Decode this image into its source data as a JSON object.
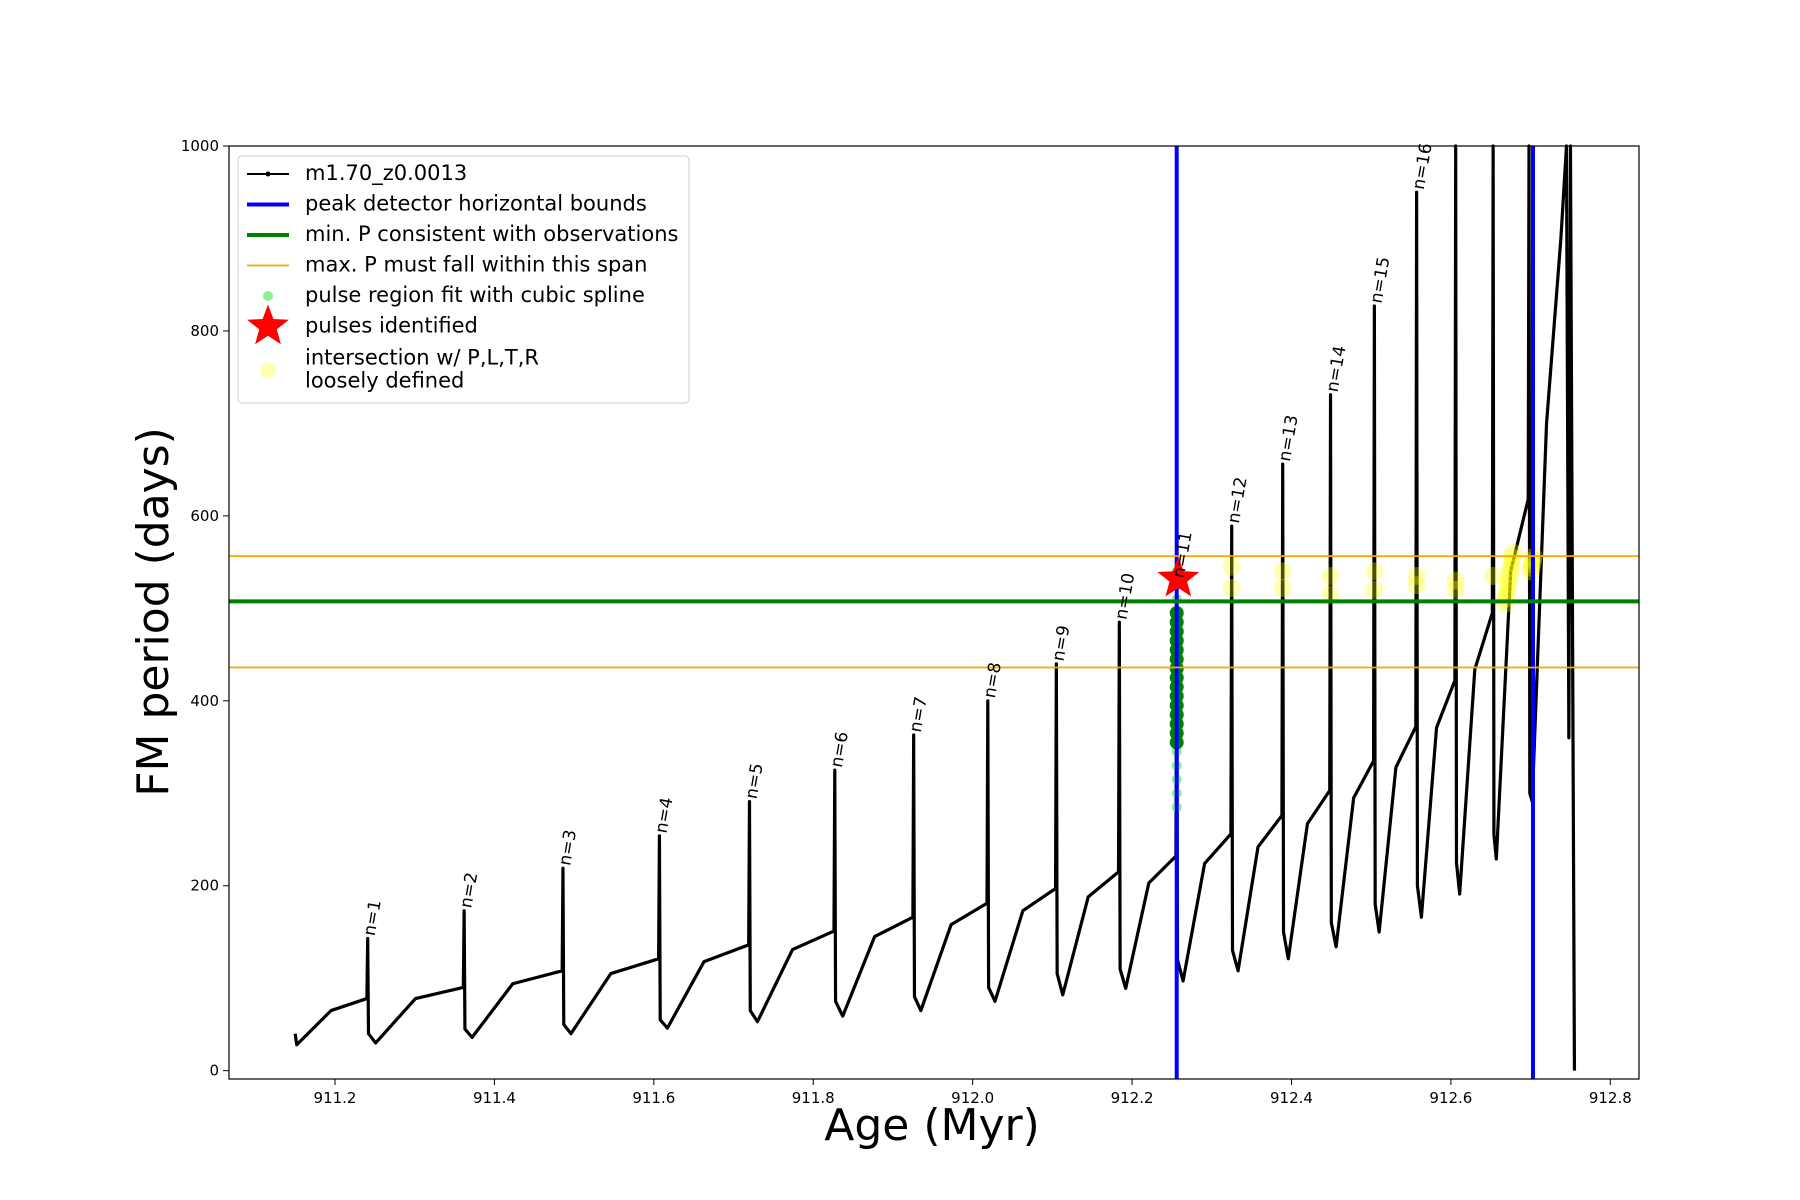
{
  "chart_data": {
    "type": "line",
    "xlabel": "Age (Myr)",
    "ylabel": "FM period (days)",
    "xlim": [
      911.067,
      912.836
    ],
    "ylim": [
      -9,
      1000
    ],
    "xticks": [
      {
        "value": 911.2,
        "label": "911.2"
      },
      {
        "value": 911.4,
        "label": "911.4"
      },
      {
        "value": 911.6,
        "label": "911.6"
      },
      {
        "value": 911.8,
        "label": "911.8"
      },
      {
        "value": 912,
        "label": "912.0"
      },
      {
        "value": 912.2,
        "label": "912.2"
      },
      {
        "value": 912.4,
        "label": "912.4"
      },
      {
        "value": 912.6,
        "label": "912.6"
      },
      {
        "value": 912.8,
        "label": "912.8"
      }
    ],
    "yticks": [
      0,
      200,
      400,
      600,
      800,
      1000
    ],
    "legend": "upper left",
    "series": [
      {
        "name": "m1.70_z0.0013",
        "kind": "line",
        "color": "#000000",
        "x": [
          911.15,
          911.152,
          911.195,
          911.24,
          911.241,
          911.242,
          911.251,
          911.301,
          911.361,
          911.362,
          911.363,
          911.372,
          911.423,
          911.485,
          911.486,
          911.487,
          911.496,
          911.546,
          911.606,
          911.607,
          911.608,
          911.617,
          911.663,
          911.719,
          911.72,
          911.721,
          911.73,
          911.774,
          911.826,
          911.827,
          911.828,
          911.837,
          911.877,
          911.925,
          911.926,
          911.927,
          911.935,
          911.973,
          912.018,
          912.019,
          912.02,
          912.028,
          912.063,
          912.104,
          912.105,
          912.106,
          912.113,
          912.145,
          912.183,
          912.184,
          912.185,
          912.192,
          912.221,
          912.255,
          912.256,
          912.257,
          912.264,
          912.291,
          912.324,
          912.325,
          912.326,
          912.333,
          912.358,
          912.388,
          912.389,
          912.39,
          912.396,
          912.42,
          912.448,
          912.449,
          912.45,
          912.456,
          912.478,
          912.503,
          912.504,
          912.505,
          912.51,
          912.531,
          912.556,
          912.557,
          912.558,
          912.563,
          912.582,
          912.605,
          912.606,
          912.607,
          912.611,
          912.63,
          912.652,
          912.653,
          912.654,
          912.657,
          912.675,
          912.697,
          912.698,
          912.699,
          912.702,
          912.72,
          912.738,
          912.745,
          912.748,
          912.75,
          912.752,
          912.755
        ],
        "values": [
          40,
          28,
          65,
          78,
          143,
          40,
          30,
          78,
          90,
          173,
          45,
          36,
          94,
          108,
          219,
          50,
          40,
          105,
          121,
          254,
          55,
          46,
          118,
          136,
          291,
          65,
          53,
          131,
          151,
          325,
          75,
          59,
          145,
          166,
          363,
          80,
          65,
          158,
          181,
          400,
          90,
          75,
          173,
          197,
          440,
          105,
          82,
          188,
          215,
          485,
          110,
          89,
          203,
          232,
          540,
          120,
          97,
          224,
          256,
          589,
          130,
          108,
          242,
          276,
          656,
          150,
          121,
          267,
          303,
          731,
          160,
          134,
          295,
          335,
          827,
          180,
          150,
          328,
          372,
          950,
          200,
          166,
          371,
          422,
          1000,
          225,
          191,
          434,
          495,
          1000,
          255,
          229,
          540,
          618,
          1000,
          300,
          291,
          700,
          900,
          1000,
          360,
          1000,
          600,
          0
        ]
      },
      {
        "name": "peak detector horizontal bounds",
        "kind": "vline",
        "color": "#0000ff",
        "values": [
          912.256,
          912.703
        ]
      },
      {
        "name": "min. P consistent with observations",
        "kind": "hline",
        "color": "#008000",
        "values": [
          507.5
        ]
      },
      {
        "name": "max. P must fall within this span",
        "kind": "hline",
        "color": "#ffa500",
        "values": [
          436,
          556.5
        ]
      },
      {
        "name": "pulse region fit with cubic spline",
        "kind": "scatter",
        "color": "#90ee90",
        "x": [
          912.256,
          912.256,
          912.256,
          912.256,
          912.256,
          912.256,
          912.256,
          912.256,
          912.256,
          912.256,
          912.256,
          912.256,
          912.256,
          912.256,
          912.256,
          912.256,
          912.256,
          912.256
        ],
        "values": [
          285,
          300,
          315,
          330,
          345,
          360,
          375,
          390,
          405,
          420,
          435,
          450,
          465,
          480,
          495,
          510,
          525,
          540
        ]
      },
      {
        "kind": "scatter",
        "color": "#008000",
        "x": [
          912.256,
          912.256,
          912.256,
          912.256,
          912.256,
          912.256,
          912.256,
          912.256,
          912.256,
          912.256,
          912.256,
          912.256,
          912.256,
          912.256,
          912.256
        ],
        "values": [
          355,
          365,
          375,
          385,
          395,
          405,
          415,
          425,
          435,
          445,
          455,
          465,
          475,
          485,
          495
        ]
      },
      {
        "name": "pulses identified",
        "kind": "star",
        "color": "#ff0000",
        "x": [
          912.258
        ],
        "values": [
          532
        ]
      },
      {
        "name": [
          "intersection w/ P,L,T,R",
          "loosely defined"
        ],
        "kind": "scatter",
        "color": "#ffff00",
        "opacity": 0.3,
        "x": [
          912.325,
          912.325,
          912.389,
          912.389,
          912.449,
          912.449,
          912.504,
          912.504,
          912.557,
          912.557,
          912.606,
          912.606,
          912.653,
          912.668,
          912.669,
          912.67,
          912.671,
          912.672,
          912.673,
          912.674,
          912.675,
          912.676,
          912.677,
          912.678,
          912.7,
          912.701,
          912.702,
          912.703,
          912.704
        ],
        "values": [
          522,
          545,
          522,
          540,
          515,
          535,
          520,
          540,
          525,
          535,
          520,
          530,
          535,
          505,
          510.5,
          516,
          521.5,
          527,
          532.5,
          538,
          543.5,
          549,
          554.5,
          560,
          540,
          544,
          548,
          552,
          556
        ]
      }
    ],
    "annotations": [
      {
        "text": "n=1",
        "x": 911.241,
        "y": 143
      },
      {
        "text": "n=2",
        "x": 911.362,
        "y": 173
      },
      {
        "text": "n=3",
        "x": 911.486,
        "y": 219
      },
      {
        "text": "n=4",
        "x": 911.607,
        "y": 254
      },
      {
        "text": "n=5",
        "x": 911.72,
        "y": 291
      },
      {
        "text": "n=6",
        "x": 911.827,
        "y": 325
      },
      {
        "text": "n=7",
        "x": 911.926,
        "y": 363
      },
      {
        "text": "n=8",
        "x": 912.019,
        "y": 400
      },
      {
        "text": "n=9",
        "x": 912.105,
        "y": 440
      },
      {
        "text": "n=10",
        "x": 912.184,
        "y": 485
      },
      {
        "text": "n=11",
        "x": 912.256,
        "y": 530
      },
      {
        "text": "n=12",
        "x": 912.325,
        "y": 589
      },
      {
        "text": "n=13",
        "x": 912.389,
        "y": 656
      },
      {
        "text": "n=14",
        "x": 912.449,
        "y": 731
      },
      {
        "text": "n=15",
        "x": 912.504,
        "y": 827
      },
      {
        "text": "n=16",
        "x": 912.557,
        "y": 950
      }
    ]
  }
}
